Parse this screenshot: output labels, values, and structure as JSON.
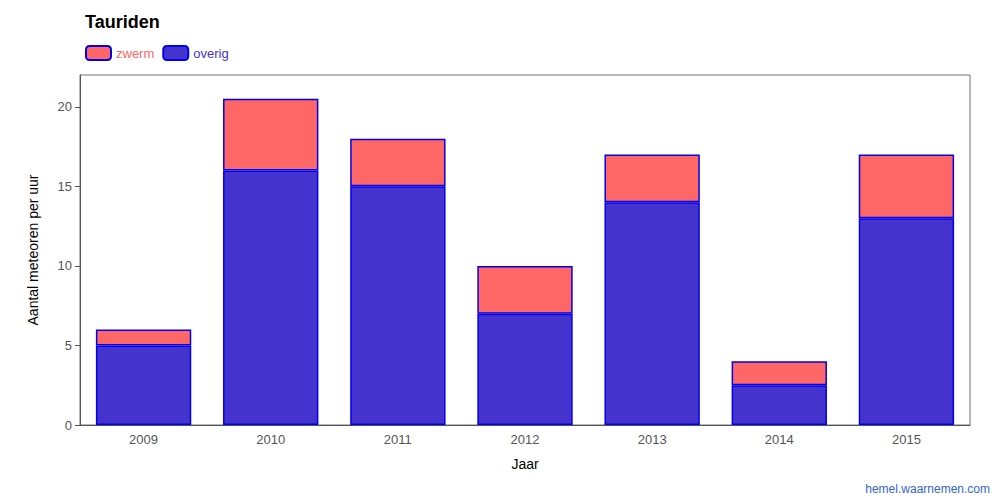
{
  "chart_data": {
    "type": "bar",
    "stacked": true,
    "title": "Tauriden",
    "x_label": "Jaar",
    "y_label": "Aantal meteoren per uur",
    "categories": [
      "2009",
      "2010",
      "2011",
      "2012",
      "2013",
      "2014",
      "2015"
    ],
    "series": [
      {
        "name": "overig",
        "color": "#4433cc",
        "values": [
          5.0,
          16.0,
          15.0,
          7.0,
          14.0,
          2.5,
          13.0
        ]
      },
      {
        "name": "zwerm",
        "color": "#ff6666",
        "values": [
          1.0,
          4.5,
          3.0,
          3.0,
          3.0,
          1.5,
          4.0
        ]
      }
    ],
    "ylim": [
      0,
      22
    ],
    "yticks": [
      0,
      5,
      10,
      15,
      20
    ],
    "grid": false,
    "legend": "upper left",
    "annotations": [
      {
        "text": "hemel.waarnemen.com",
        "color": "#3366cc"
      }
    ]
  }
}
